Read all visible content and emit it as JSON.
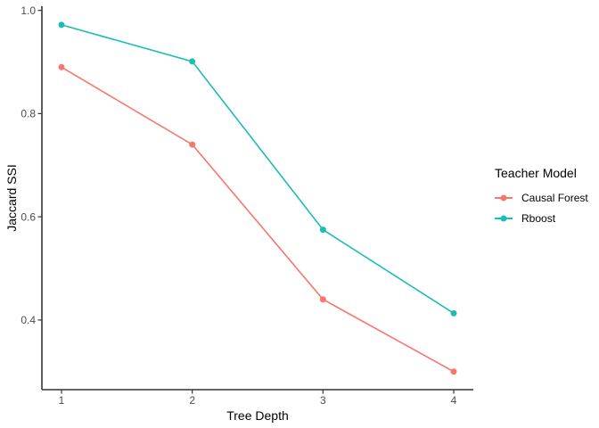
{
  "chart_data": {
    "type": "line",
    "title": "",
    "xlabel": "Tree Depth",
    "ylabel": "Jaccard SSI",
    "legend_title": "Teacher Model",
    "legend_position": "right",
    "grid": false,
    "axis_color": "#343434",
    "tick_label_color": "#4d4d4d",
    "x": [
      1,
      2,
      3,
      4
    ],
    "xtick_labels": [
      "1",
      "2",
      "3",
      "4"
    ],
    "ytick_values": [
      0.4,
      0.6,
      0.8,
      1.0
    ],
    "ytick_labels": [
      "0.4",
      "0.6",
      "0.8",
      "1.0"
    ],
    "xlim": [
      0.85,
      4.15
    ],
    "ylim": [
      0.265,
      1.008
    ],
    "series": [
      {
        "name": "Causal Forest",
        "color": "#F8766D",
        "values": [
          0.89,
          0.74,
          0.44,
          0.3
        ]
      },
      {
        "name": "Rboost",
        "color": "#1BBDB6",
        "values": [
          0.972,
          0.901,
          0.575,
          0.413
        ]
      }
    ]
  }
}
